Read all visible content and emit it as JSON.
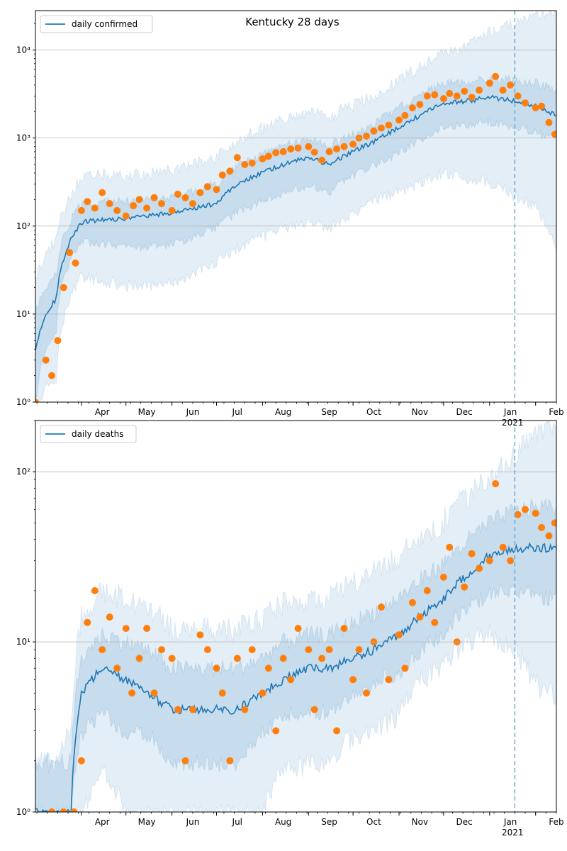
{
  "chart_data": [
    {
      "type": "line",
      "title": "Kentucky 28 days",
      "yscale": "log",
      "ylim": [
        1,
        28000
      ],
      "xlim": [
        "2020-03-01",
        "2021-02-15"
      ],
      "grid": "horizontal major",
      "legend_position": "top-left",
      "x_tick_labels": [
        "Apr",
        "May",
        "Jun",
        "Jul",
        "Aug",
        "Sep",
        "Oct",
        "Nov",
        "Dec",
        "Jan",
        "Feb"
      ],
      "x_tick_year_label": "2021",
      "y_ticks": [
        1,
        10,
        100,
        1000,
        10000
      ],
      "y_tick_labels": [
        "10⁰",
        "10¹",
        "10²",
        "10³",
        "10⁴"
      ],
      "forecast_start": "2021-01-18",
      "series": [
        {
          "name": "daily confirmed",
          "color": "#1f77b4",
          "kind": "model median",
          "x": [
            "2020-03-01",
            "2020-03-15",
            "2020-04-01",
            "2020-04-15",
            "2020-05-01",
            "2020-05-15",
            "2020-06-01",
            "2020-06-15",
            "2020-07-01",
            "2020-07-15",
            "2020-08-01",
            "2020-08-15",
            "2020-09-01",
            "2020-09-15",
            "2020-10-01",
            "2020-10-15",
            "2020-11-01",
            "2020-11-15",
            "2020-12-01",
            "2020-12-15",
            "2021-01-01",
            "2021-01-15",
            "2021-02-01",
            "2021-02-15"
          ],
          "y": [
            4,
            15,
            110,
            120,
            120,
            130,
            140,
            160,
            180,
            300,
            400,
            500,
            600,
            500,
            700,
            900,
            1300,
            1800,
            2500,
            2600,
            2900,
            2700,
            2300,
            1800
          ],
          "band_inner": {
            "low": [
              1,
              7,
              70,
              65,
              60,
              60,
              65,
              75,
              100,
              150,
              200,
              250,
              300,
              250,
              400,
              500,
              700,
              1000,
              1400,
              1500,
              1600,
              1400,
              1200,
              1000
            ],
            "high": [
              10,
              30,
              180,
              190,
              190,
              200,
              220,
              250,
              300,
              480,
              650,
              800,
              950,
              850,
              1100,
              1400,
              2200,
              3000,
              4200,
              4300,
              4800,
              4600,
              4200,
              3500
            ]
          },
          "band_outer": {
            "low": [
              1,
              2,
              28,
              25,
              22,
              22,
              25,
              30,
              40,
              60,
              80,
              100,
              120,
              100,
              150,
              200,
              260,
              330,
              420,
              380,
              330,
              250,
              170,
              60
            ],
            "high": [
              25,
              70,
              350,
              380,
              370,
              390,
              430,
              500,
              620,
              900,
              1300,
              1600,
              1900,
              1800,
              2400,
              3000,
              4500,
              6500,
              9000,
              11000,
              16000,
              20000,
              24000,
              26000
            ]
          }
        },
        {
          "name": "",
          "kind": "observed",
          "color": "#ff7f0e",
          "x": [
            "2020-03-01",
            "2020-03-08",
            "2020-03-12",
            "2020-03-16",
            "2020-03-20",
            "2020-03-24",
            "2020-03-28",
            "2020-04-01",
            "2020-04-05",
            "2020-04-10",
            "2020-04-15",
            "2020-04-20",
            "2020-04-25",
            "2020-05-01",
            "2020-05-06",
            "2020-05-10",
            "2020-05-15",
            "2020-05-20",
            "2020-05-25",
            "2020-06-01",
            "2020-06-05",
            "2020-06-10",
            "2020-06-15",
            "2020-06-20",
            "2020-06-25",
            "2020-07-01",
            "2020-07-05",
            "2020-07-10",
            "2020-07-15",
            "2020-07-20",
            "2020-07-25",
            "2020-08-01",
            "2020-08-05",
            "2020-08-10",
            "2020-08-15",
            "2020-08-20",
            "2020-08-25",
            "2020-09-01",
            "2020-09-05",
            "2020-09-10",
            "2020-09-15",
            "2020-09-20",
            "2020-09-25",
            "2020-10-01",
            "2020-10-05",
            "2020-10-10",
            "2020-10-15",
            "2020-10-20",
            "2020-10-25",
            "2020-11-01",
            "2020-11-05",
            "2020-11-10",
            "2020-11-15",
            "2020-11-20",
            "2020-11-25",
            "2020-12-01",
            "2020-12-05",
            "2020-12-10",
            "2020-12-15",
            "2020-12-20",
            "2020-12-25",
            "2021-01-01",
            "2021-01-05",
            "2021-01-10",
            "2021-01-15",
            "2021-01-20",
            "2021-01-25",
            "2021-02-01",
            "2021-02-05",
            "2021-02-10",
            "2021-02-14"
          ],
          "y": [
            1,
            3,
            2,
            5,
            20,
            50,
            38,
            150,
            190,
            160,
            240,
            180,
            150,
            130,
            170,
            200,
            160,
            210,
            180,
            150,
            230,
            210,
            180,
            240,
            280,
            260,
            380,
            420,
            600,
            500,
            520,
            580,
            620,
            680,
            700,
            750,
            770,
            800,
            690,
            560,
            700,
            750,
            800,
            850,
            1000,
            1050,
            1200,
            1300,
            1400,
            1600,
            1800,
            2200,
            2400,
            3000,
            3100,
            2800,
            3200,
            3000,
            3400,
            2900,
            3500,
            4200,
            5000,
            3500,
            4000,
            3000,
            2500,
            2200,
            2300,
            1500,
            1100
          ]
        }
      ]
    },
    {
      "type": "line",
      "title": "",
      "yscale": "log",
      "ylim": [
        1,
        200
      ],
      "xlim": [
        "2020-03-01",
        "2021-02-15"
      ],
      "grid": "horizontal major",
      "legend_position": "top-left",
      "x_tick_labels": [
        "Apr",
        "May",
        "Jun",
        "Jul",
        "Aug",
        "Sep",
        "Oct",
        "Nov",
        "Dec",
        "Jan",
        "Feb"
      ],
      "x_tick_year_label": "2021",
      "y_ticks": [
        1,
        10,
        100
      ],
      "y_tick_labels": [
        "10⁰",
        "10¹",
        "10²"
      ],
      "forecast_start": "2021-01-18",
      "series": [
        {
          "name": "daily deaths",
          "color": "#1f77b4",
          "kind": "model median",
          "x": [
            "2020-03-01",
            "2020-03-15",
            "2020-03-25",
            "2020-04-01",
            "2020-04-15",
            "2020-05-01",
            "2020-05-15",
            "2020-06-01",
            "2020-06-15",
            "2020-07-01",
            "2020-07-15",
            "2020-08-01",
            "2020-08-15",
            "2020-09-01",
            "2020-09-15",
            "2020-10-01",
            "2020-10-15",
            "2020-11-01",
            "2020-11-15",
            "2020-12-01",
            "2020-12-15",
            "2021-01-01",
            "2021-01-15",
            "2021-02-01",
            "2021-02-15"
          ],
          "y": [
            1,
            1,
            1,
            5,
            7,
            6,
            5,
            4,
            4,
            4,
            4,
            5,
            6,
            7,
            7,
            8,
            9,
            11,
            14,
            18,
            24,
            32,
            35,
            36,
            35
          ],
          "band_inner": {
            "low": [
              1,
              1,
              1,
              3,
              4,
              3,
              3,
              2,
              2,
              2,
              2,
              3,
              4,
              4,
              4,
              5,
              6,
              7,
              9,
              12,
              16,
              20,
              21,
              20,
              18
            ],
            "high": [
              2,
              2,
              2,
              8,
              11,
              10,
              9,
              7,
              7,
              7,
              7,
              8,
              10,
              11,
              11,
              13,
              15,
              18,
              23,
              29,
              38,
              50,
              58,
              62,
              64
            ]
          },
          "band_outer": {
            "low": [
              1,
              1,
              1,
              1,
              2,
              1,
              1,
              1,
              1,
              1,
              1,
              1,
              2,
              2,
              2,
              3,
              3,
              4,
              6,
              8,
              10,
              12,
              10,
              6,
              5
            ],
            "high": [
              2,
              2,
              3,
              14,
              20,
              18,
              16,
              12,
              12,
              12,
              12,
              14,
              17,
              18,
              18,
              22,
              26,
              32,
              40,
              52,
              70,
              95,
              120,
              160,
              190
            ]
          }
        },
        {
          "name": "",
          "kind": "observed",
          "color": "#ff7f0e",
          "x": [
            "2020-03-12",
            "2020-03-20",
            "2020-03-27",
            "2020-04-01",
            "2020-04-05",
            "2020-04-10",
            "2020-04-15",
            "2020-04-20",
            "2020-04-25",
            "2020-05-01",
            "2020-05-05",
            "2020-05-10",
            "2020-05-15",
            "2020-05-20",
            "2020-05-25",
            "2020-06-01",
            "2020-06-05",
            "2020-06-10",
            "2020-06-15",
            "2020-06-20",
            "2020-06-25",
            "2020-07-01",
            "2020-07-05",
            "2020-07-10",
            "2020-07-15",
            "2020-07-20",
            "2020-07-25",
            "2020-08-01",
            "2020-08-05",
            "2020-08-10",
            "2020-08-15",
            "2020-08-20",
            "2020-08-25",
            "2020-09-01",
            "2020-09-05",
            "2020-09-10",
            "2020-09-15",
            "2020-09-20",
            "2020-09-25",
            "2020-10-01",
            "2020-10-05",
            "2020-10-10",
            "2020-10-15",
            "2020-10-20",
            "2020-10-25",
            "2020-11-01",
            "2020-11-05",
            "2020-11-10",
            "2020-11-15",
            "2020-11-20",
            "2020-11-25",
            "2020-12-01",
            "2020-12-05",
            "2020-12-10",
            "2020-12-15",
            "2020-12-20",
            "2020-12-25",
            "2021-01-01",
            "2021-01-05",
            "2021-01-10",
            "2021-01-15",
            "2021-01-20",
            "2021-01-25",
            "2021-02-01",
            "2021-02-05",
            "2021-02-10",
            "2021-02-14"
          ],
          "y": [
            1,
            1,
            1,
            2,
            13,
            20,
            9,
            14,
            7,
            12,
            5,
            8,
            12,
            5,
            9,
            8,
            4,
            2,
            4,
            11,
            9,
            7,
            5,
            2,
            8,
            4,
            9,
            5,
            7,
            3,
            8,
            6,
            12,
            9,
            4,
            8,
            9,
            3,
            12,
            6,
            9,
            5,
            10,
            16,
            6,
            11,
            7,
            17,
            14,
            20,
            13,
            24,
            36,
            10,
            21,
            33,
            27,
            30,
            85,
            36,
            30,
            56,
            60,
            57,
            47,
            42,
            50
          ]
        }
      ]
    }
  ]
}
